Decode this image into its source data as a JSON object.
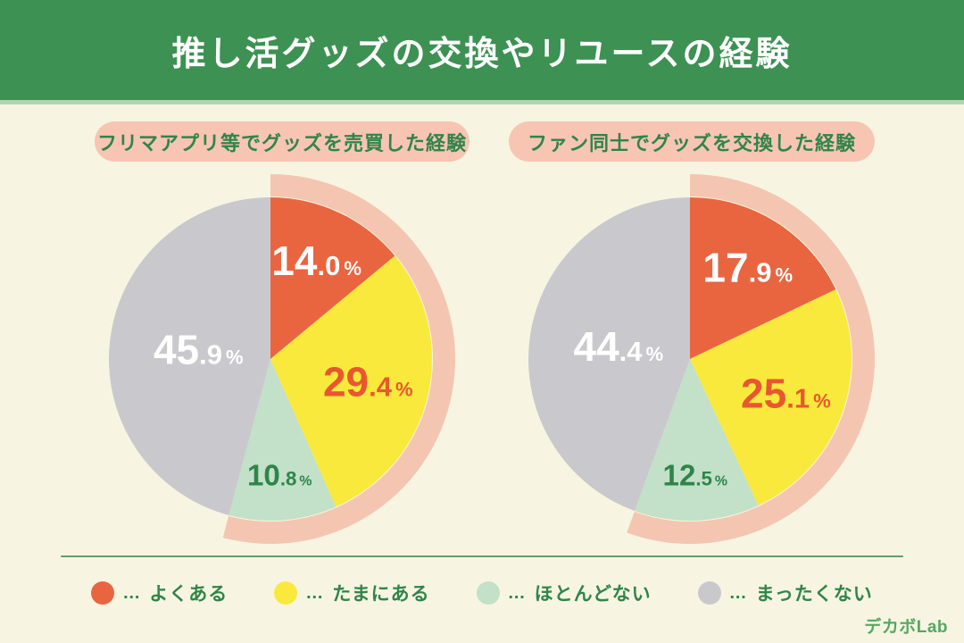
{
  "header": {
    "title": "推し活グッズの交換やリユースの経験"
  },
  "chart_data": [
    {
      "type": "pie",
      "title": "フリマアプリ等でグッズを売買した経験",
      "labels": [
        "よくある",
        "たまにある",
        "ほとんどない",
        "まったくない"
      ],
      "values": [
        14.0,
        29.4,
        10.8,
        45.9
      ],
      "unit": "%",
      "colors": [
        "#E96540",
        "#FAE93D",
        "#C3E0C8",
        "#C9C9CD"
      ],
      "start_angle_deg": 0,
      "direction": "clockwise",
      "highlight_arc": {
        "covers_first_n": 3,
        "color": "#F4C6B1"
      },
      "label_layout": {
        "radius_factor": [
          0.67,
          0.62,
          0.72,
          0.45
        ],
        "colors": [
          "#FFFFFF",
          "#E8572F",
          "#2E8549",
          "#FFFFFF"
        ],
        "scale": [
          1,
          1,
          0.72,
          1
        ]
      }
    },
    {
      "type": "pie",
      "title": "ファン同士でグッズを交換した経験",
      "labels": [
        "よくある",
        "たまにある",
        "ほとんどない",
        "まったくない"
      ],
      "values": [
        17.9,
        25.1,
        12.5,
        44.4
      ],
      "unit": "%",
      "colors": [
        "#E96540",
        "#FAE93D",
        "#C3E0C8",
        "#C9C9CD"
      ],
      "start_angle_deg": 0,
      "direction": "clockwise",
      "highlight_arc": {
        "covers_first_n": 3,
        "color": "#F4C6B1"
      },
      "label_layout": {
        "radius_factor": [
          0.67,
          0.63,
          0.72,
          0.45
        ],
        "colors": [
          "#FFFFFF",
          "#E8572F",
          "#2E8549",
          "#FFFFFF"
        ],
        "scale": [
          1,
          1,
          0.72,
          1
        ]
      }
    }
  ],
  "legend": {
    "separator": "…",
    "items": [
      {
        "label": "よくある",
        "color": "#E96540"
      },
      {
        "label": "たまにある",
        "color": "#FAE93D"
      },
      {
        "label": "ほとんどない",
        "color": "#C3E0C8"
      },
      {
        "label": "まったくない",
        "color": "#C9C9CD"
      }
    ]
  },
  "footer": {
    "logo": "デカボLab"
  },
  "colors": {
    "background": "#F7F5E1",
    "header_bg": "#3D9153",
    "header_strip": "#B7D3AE",
    "title_text": "#FFFFFF",
    "pill_bg": "#F8C5B3",
    "pill_text": "#2F8549",
    "divider": "#5F9E6E",
    "legend_text": "#2F8549",
    "logo_text": "#55A763"
  }
}
